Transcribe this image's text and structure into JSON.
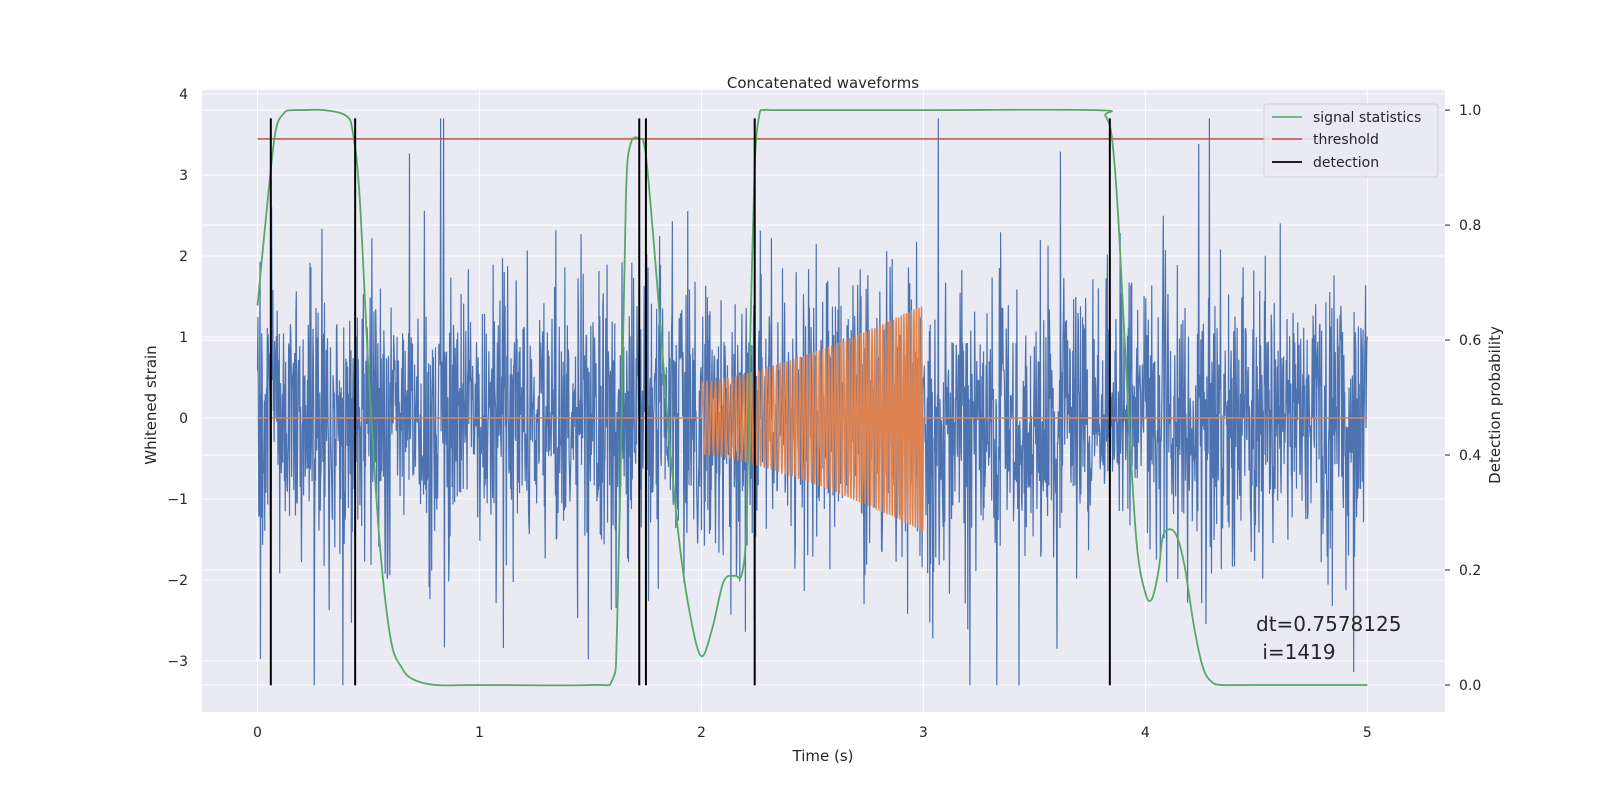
{
  "chart_data": {
    "type": "line",
    "title": "Concatenated waveforms",
    "xlabel": "Time (s)",
    "ylabel": "Whitened strain",
    "ylabel_right": "Detection probability",
    "xlim": [
      -0.25,
      5.35
    ],
    "ylim": [
      -3.63,
      4.05
    ],
    "ylim_right": [
      -0.047,
      1.035
    ],
    "x_ticks": [
      0,
      1,
      2,
      3,
      4,
      5
    ],
    "y_ticks": [
      -3,
      -2,
      -1,
      0,
      1,
      2,
      3,
      4
    ],
    "y_ticks_right": [
      0.0,
      0.2,
      0.4,
      0.6,
      0.8,
      1.0
    ],
    "x_tick_labels": [
      "0",
      "1",
      "2",
      "3",
      "4",
      "5"
    ],
    "y_tick_labels": [
      "−3",
      "−2",
      "−1",
      "0",
      "1",
      "2",
      "3",
      "4"
    ],
    "y_tick_labels_right": [
      "0.0",
      "0.2",
      "0.4",
      "0.6",
      "0.8",
      "1.0"
    ],
    "grid": true,
    "legend_position": "top-right",
    "legend": [
      {
        "label": "signal statistics",
        "color": "#55a868"
      },
      {
        "label": "threshold",
        "color": "#c44e52"
      },
      {
        "label": "detection",
        "color": "#000000"
      }
    ],
    "series": [
      {
        "name": "strain",
        "color": "#4c72b0",
        "axis": "left",
        "x_range": [
          0,
          5
        ],
        "typical_amplitude": [
          -2.0,
          2.0
        ],
        "peak_range": [
          -3.3,
          3.7
        ]
      },
      {
        "name": "waveform",
        "color": "#dd8452",
        "axis": "left",
        "x_range": [
          0,
          5
        ],
        "chirp_start": 2.0,
        "chirp_end": 3.0,
        "chirp_amplitude_start": 0.45,
        "chirp_amplitude_end": 1.4
      },
      {
        "name": "signal statistics",
        "color": "#55a868",
        "axis": "right",
        "x": [
          0.0,
          0.04,
          0.08,
          0.12,
          0.16,
          0.2,
          0.3,
          0.4,
          0.43,
          0.46,
          0.5,
          0.55,
          0.6,
          0.65,
          0.7,
          0.8,
          1.0,
          1.5,
          1.6,
          1.62,
          1.64,
          1.66,
          1.68,
          1.72,
          1.75,
          1.8,
          1.85,
          1.9,
          1.95,
          2.0,
          2.05,
          2.1,
          2.15,
          2.18,
          2.2,
          2.21,
          2.22,
          2.24,
          2.26,
          2.28,
          2.32,
          2.4,
          3.0,
          3.78,
          3.82,
          3.85,
          3.88,
          3.92,
          3.96,
          4.0,
          4.03,
          4.06,
          4.08,
          4.12,
          4.15,
          4.18,
          4.22,
          4.26,
          4.3,
          4.35,
          4.5,
          5.0
        ],
        "y": [
          0.66,
          0.82,
          0.96,
          0.995,
          1.0,
          1.0,
          1.0,
          0.99,
          0.96,
          0.85,
          0.55,
          0.25,
          0.08,
          0.03,
          0.01,
          0.0,
          0.0,
          0.0,
          0.01,
          0.1,
          0.45,
          0.85,
          0.94,
          0.95,
          0.92,
          0.7,
          0.45,
          0.25,
          0.12,
          0.05,
          0.1,
          0.18,
          0.19,
          0.19,
          0.25,
          0.4,
          0.6,
          0.9,
          0.99,
          1.0,
          1.0,
          1.0,
          1.0,
          1.0,
          0.99,
          0.95,
          0.8,
          0.5,
          0.25,
          0.16,
          0.15,
          0.2,
          0.26,
          0.27,
          0.25,
          0.2,
          0.1,
          0.03,
          0.005,
          0.0,
          0.0,
          0.0
        ]
      },
      {
        "name": "threshold",
        "color": "#c44e52",
        "axis": "right",
        "x": [
          0,
          5
        ],
        "y": [
          0.95,
          0.95
        ]
      }
    ],
    "detections": [
      0.06,
      0.44,
      1.72,
      1.75,
      2.24,
      3.84
    ],
    "detection_range": [
      -3.3,
      3.7
    ],
    "annotation": [
      "dt=0.7578125",
      " i=1419"
    ]
  }
}
